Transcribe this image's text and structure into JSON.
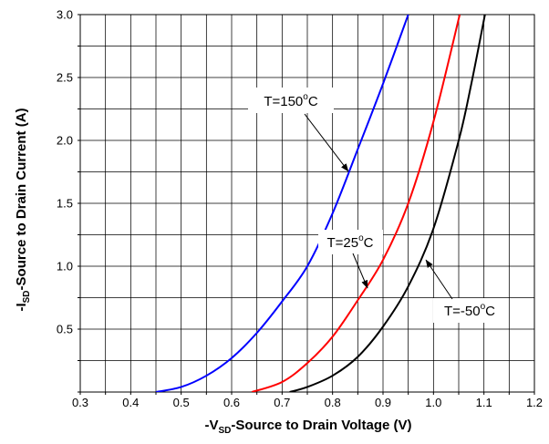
{
  "chart_data": {
    "type": "line",
    "xlabel": {
      "main": "-V",
      "sub": "SD",
      "tail": "-Source to Drain Voltage (V)"
    },
    "ylabel": {
      "main": "-I",
      "sub": "SD",
      "tail": "-Source to Drain Current (A)"
    },
    "xlim": [
      0.3,
      1.2
    ],
    "ylim": [
      0,
      3.0
    ],
    "x_ticks": [
      "0.3",
      "0.4",
      "0.5",
      "0.6",
      "0.7",
      "0.8",
      "0.9",
      "1.0",
      "1.1",
      "1.2"
    ],
    "y_ticks": [
      "0.5",
      "1.0",
      "1.5",
      "2.0",
      "2.5",
      "3.0"
    ],
    "grid": true,
    "x_grid_step": 0.05,
    "y_grid_step": 0.25,
    "series": [
      {
        "label": {
          "main": "T=150",
          "sup": "o",
          "tail": "C"
        },
        "color": "#0000ff",
        "points": [
          [
            0.45,
            0
          ],
          [
            0.5,
            0.04
          ],
          [
            0.55,
            0.13
          ],
          [
            0.6,
            0.27
          ],
          [
            0.65,
            0.47
          ],
          [
            0.7,
            0.72
          ],
          [
            0.75,
            1.0
          ],
          [
            0.8,
            1.42
          ],
          [
            0.85,
            1.93
          ],
          [
            0.9,
            2.45
          ],
          [
            0.95,
            3.0
          ]
        ]
      },
      {
        "label": {
          "main": "T=25",
          "sup": "o",
          "tail": "C"
        },
        "color": "#ff0000",
        "points": [
          [
            0.64,
            0
          ],
          [
            0.7,
            0.08
          ],
          [
            0.75,
            0.23
          ],
          [
            0.8,
            0.44
          ],
          [
            0.85,
            0.73
          ],
          [
            0.9,
            1.05
          ],
          [
            0.95,
            1.5
          ],
          [
            1.0,
            2.15
          ],
          [
            1.052,
            3.0
          ]
        ]
      },
      {
        "label": {
          "main": "T=-50",
          "sup": "o",
          "tail": "C"
        },
        "color": "#000000",
        "points": [
          [
            0.715,
            0
          ],
          [
            0.75,
            0.04
          ],
          [
            0.8,
            0.13
          ],
          [
            0.85,
            0.28
          ],
          [
            0.9,
            0.52
          ],
          [
            0.95,
            0.84
          ],
          [
            1.0,
            1.3
          ],
          [
            1.05,
            2.0
          ],
          [
            1.075,
            2.45
          ],
          [
            1.102,
            3.0
          ]
        ]
      }
    ]
  }
}
